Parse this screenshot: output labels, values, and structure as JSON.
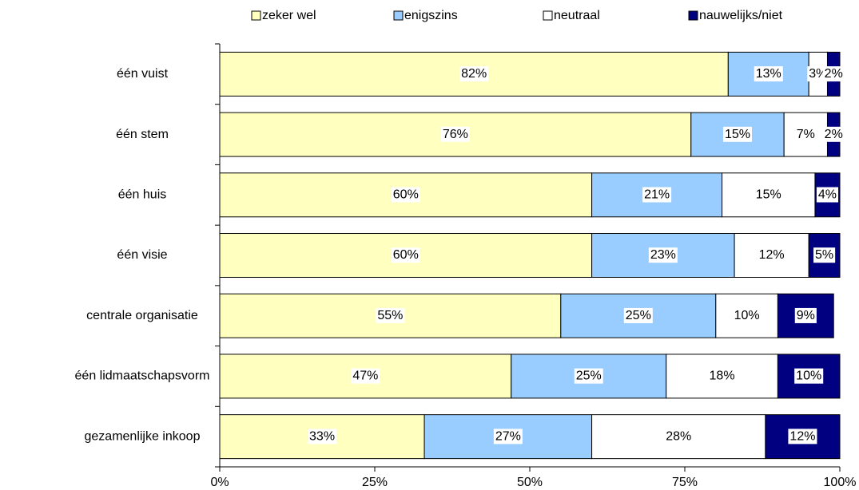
{
  "chart_data": {
    "type": "stacked_bar_horizontal",
    "categories": [
      "één vuist",
      "één stem",
      "één huis",
      "één visie",
      "centrale organisatie",
      "één lidmaatschapsvorm",
      "gezamenlijke inkoop"
    ],
    "series": [
      {
        "name": "zeker wel",
        "color": "#ffffc0",
        "values": [
          82,
          76,
          60,
          60,
          55,
          47,
          33
        ],
        "value_labels": [
          "82%",
          "76%",
          "60%",
          "60%",
          "55%",
          "47%",
          "33%"
        ]
      },
      {
        "name": "enigszins",
        "color": "#99ccff",
        "values": [
          13,
          15,
          21,
          23,
          25,
          25,
          27
        ],
        "value_labels": [
          "13%",
          "15%",
          "21%",
          "23%",
          "25%",
          "25%",
          "27%"
        ]
      },
      {
        "name": "neutraal",
        "color": "#ffffff",
        "values": [
          3,
          7,
          15,
          12,
          10,
          18,
          28
        ],
        "value_labels": [
          "3%",
          "7%",
          "15%",
          "12%",
          "10%",
          "18%",
          "28%"
        ]
      },
      {
        "name": "nauwelijks/niet",
        "color": "#000080",
        "values": [
          2,
          2,
          4,
          5,
          9,
          10,
          12
        ],
        "value_labels": [
          "2%",
          "2%",
          "4%",
          "5%",
          "9%",
          "10%",
          "12%"
        ]
      }
    ],
    "xlim": [
      0,
      100
    ],
    "xticks": [
      {
        "value": 0,
        "label": "0%"
      },
      {
        "value": 25,
        "label": "25%"
      },
      {
        "value": 50,
        "label": "50%"
      },
      {
        "value": 75,
        "label": "75%"
      },
      {
        "value": 100,
        "label": "100%"
      }
    ],
    "legend": "top"
  }
}
